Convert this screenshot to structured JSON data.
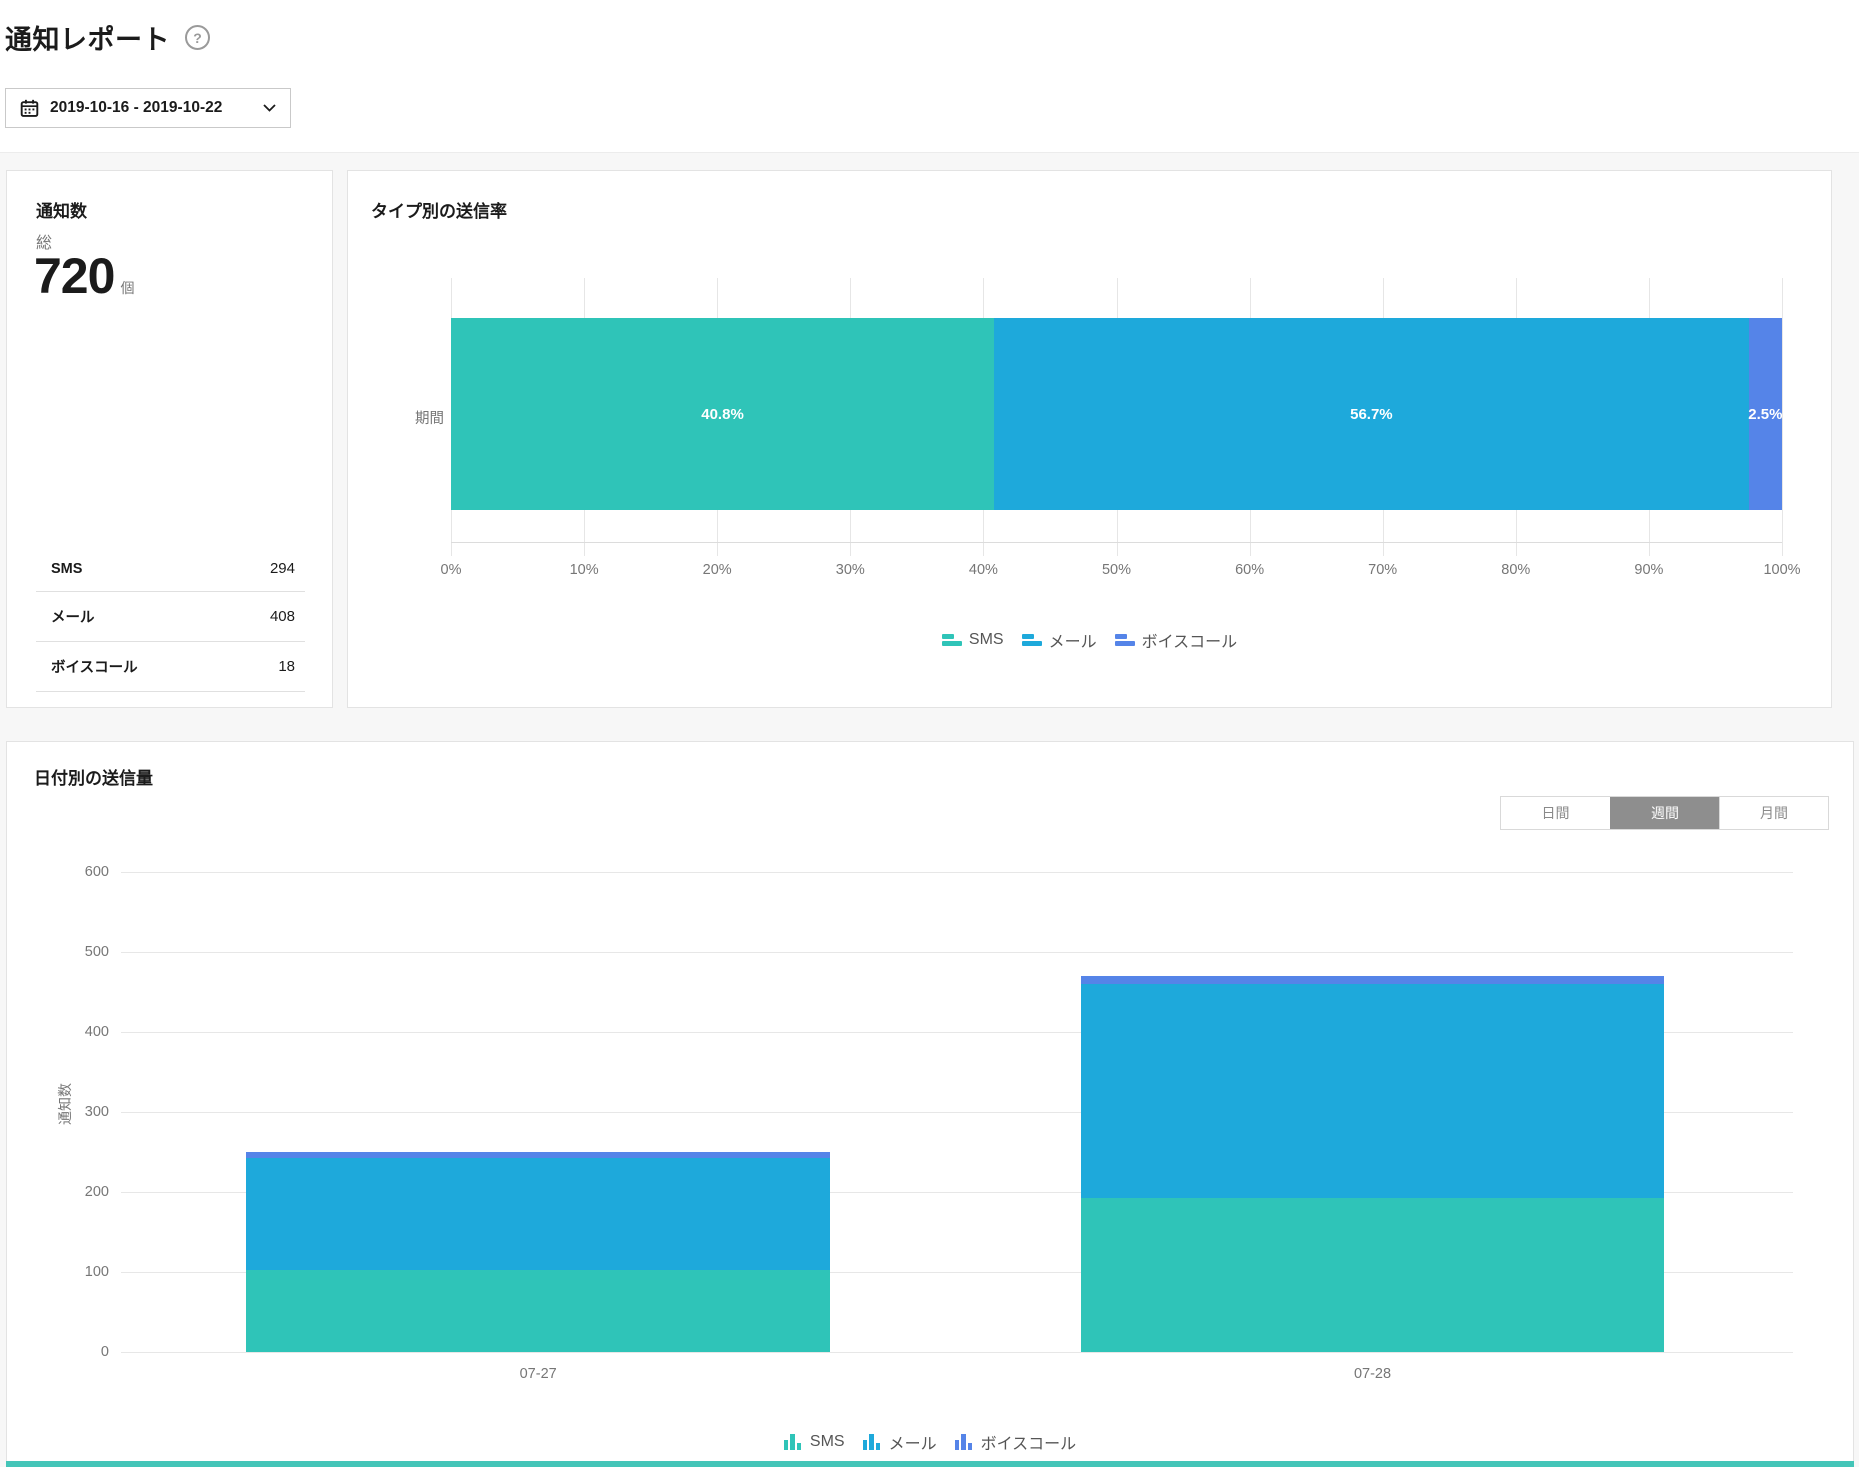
{
  "header": {
    "title": "通知レポート",
    "help_icon_glyph": "?"
  },
  "date_range": {
    "value": "2019-10-16 - 2019-10-22"
  },
  "colors": {
    "sms": "#2fc4b8",
    "mail": "#1ea9db",
    "voice": "#5584e8",
    "accent_line": "#44c5b8",
    "toggle_active_bg": "#8e8e8e"
  },
  "summary": {
    "title": "通知数",
    "total_label": "総",
    "total_value": "720",
    "total_unit": "個",
    "rows": [
      {
        "key": "sms",
        "label": "SMS",
        "value": "294"
      },
      {
        "key": "mail",
        "label": "メール",
        "value": "408"
      },
      {
        "key": "voice",
        "label": "ボイスコール",
        "value": "18"
      }
    ]
  },
  "rate_chart": {
    "title": "タイプ別の送信率",
    "row_label": "期間",
    "chart_data": {
      "type": "bar",
      "orientation": "horizontal",
      "stacked": true,
      "categories": [
        "期間"
      ],
      "series": [
        {
          "key": "sms",
          "name": "SMS",
          "values": [
            40.8
          ],
          "label": "40.8%"
        },
        {
          "key": "mail",
          "name": "メール",
          "values": [
            56.7
          ],
          "label": "56.7%"
        },
        {
          "key": "voice",
          "name": "ボイスコール",
          "values": [
            2.5
          ],
          "label": "2.5%"
        }
      ],
      "xlim": [
        0,
        100
      ],
      "x_ticks": [
        "0%",
        "10%",
        "20%",
        "30%",
        "40%",
        "50%",
        "60%",
        "70%",
        "80%",
        "90%",
        "100%"
      ],
      "grid": true,
      "legend_position": "bottom"
    },
    "legend": [
      {
        "key": "sms",
        "label": "SMS"
      },
      {
        "key": "mail",
        "label": "メール"
      },
      {
        "key": "voice",
        "label": "ボイスコール"
      }
    ]
  },
  "volume_chart": {
    "title": "日付別の送信量",
    "toggles": [
      {
        "key": "daily",
        "label": "日間",
        "active": false
      },
      {
        "key": "weekly",
        "label": "週間",
        "active": true
      },
      {
        "key": "monthly",
        "label": "月間",
        "active": false
      }
    ],
    "ylabel": "通知数",
    "chart_data": {
      "type": "bar",
      "stacked": true,
      "categories": [
        "07-27",
        "07-28"
      ],
      "series": [
        {
          "key": "sms",
          "name": "SMS",
          "values": [
            102,
            192
          ]
        },
        {
          "key": "mail",
          "name": "メール",
          "values": [
            140,
            268
          ]
        },
        {
          "key": "voice",
          "name": "ボイスコール",
          "values": [
            8,
            10
          ]
        }
      ],
      "ylim": [
        0,
        600
      ],
      "y_ticks": [
        "0",
        "100",
        "200",
        "300",
        "400",
        "500",
        "600"
      ],
      "ylabel": "通知数",
      "grid": true,
      "legend_position": "bottom"
    },
    "legend": [
      {
        "key": "sms",
        "label": "SMS"
      },
      {
        "key": "mail",
        "label": "メール"
      },
      {
        "key": "voice",
        "label": "ボイスコール"
      }
    ]
  }
}
